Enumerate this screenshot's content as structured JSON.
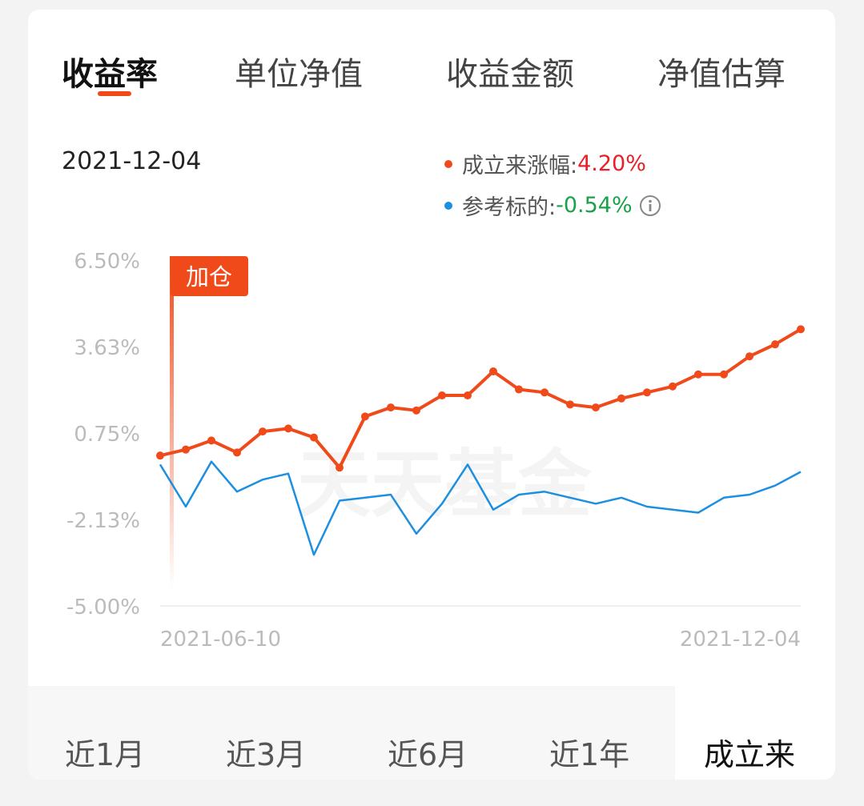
{
  "tabs": [
    {
      "label": "收益率",
      "active": true
    },
    {
      "label": "单位净值",
      "active": false
    },
    {
      "label": "收益金额",
      "active": false
    },
    {
      "label": "净值估算",
      "active": false
    }
  ],
  "selected_date": "2021-12-04",
  "legend": [
    {
      "name": "成立来涨幅:",
      "value": "4.20%",
      "color": "#f04a1a"
    },
    {
      "name": "参考标的:",
      "value": "-0.54%",
      "color": "#1d8fe0",
      "info_icon": "info-circle-icon"
    }
  ],
  "marker_label": "加仓",
  "watermark": "天天基金",
  "periods": [
    {
      "label": "近1月",
      "active": false
    },
    {
      "label": "近3月",
      "active": false
    },
    {
      "label": "近6月",
      "active": false
    },
    {
      "label": "近1年",
      "active": false
    },
    {
      "label": "成立来",
      "active": true
    }
  ],
  "chart_data": {
    "type": "line",
    "y_tick_labels": [
      "6.50%",
      "3.63%",
      "0.75%",
      "-2.13%",
      "-5.00%"
    ],
    "ylim": [
      -5.0,
      6.5
    ],
    "x_tick_labels": [
      "2021-06-10",
      "2021-12-04"
    ],
    "x": [
      "2021-06-10",
      "2021-06-17",
      "2021-06-24",
      "2021-07-01",
      "2021-07-08",
      "2021-07-15",
      "2021-07-22",
      "2021-07-29",
      "2021-08-05",
      "2021-08-12",
      "2021-08-19",
      "2021-08-26",
      "2021-09-02",
      "2021-09-09",
      "2021-09-16",
      "2021-09-23",
      "2021-09-30",
      "2021-10-07",
      "2021-10-14",
      "2021-10-21",
      "2021-10-28",
      "2021-11-04",
      "2021-11-11",
      "2021-11-18",
      "2021-11-25",
      "2021-12-04"
    ],
    "series": [
      {
        "name": "成立来涨幅",
        "color": "#f04a1a",
        "values": [
          0.0,
          0.2,
          0.5,
          0.1,
          0.8,
          0.9,
          0.6,
          -0.4,
          1.3,
          1.6,
          1.5,
          2.0,
          2.0,
          2.8,
          2.2,
          2.1,
          1.7,
          1.6,
          1.9,
          2.1,
          2.3,
          2.7,
          2.7,
          3.3,
          3.7,
          4.2
        ]
      },
      {
        "name": "参考标的",
        "color": "#1d8fe0",
        "values": [
          -0.3,
          -1.7,
          -0.2,
          -1.2,
          -0.8,
          -0.6,
          -3.3,
          -1.5,
          -1.4,
          -1.3,
          -2.6,
          -1.6,
          -0.3,
          -1.8,
          -1.3,
          -1.2,
          -1.4,
          -1.6,
          -1.4,
          -1.7,
          -1.8,
          -1.9,
          -1.4,
          -1.3,
          -1.0,
          -0.54
        ]
      }
    ]
  }
}
